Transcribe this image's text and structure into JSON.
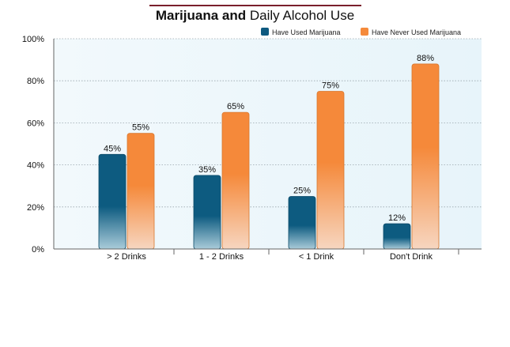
{
  "chart_data": {
    "type": "bar",
    "title_bold": "Marijuana and",
    "title_rest": "Daily Alcohol Use",
    "categories": [
      "> 2 Drinks",
      "1 - 2 Drinks",
      "< 1 Drink",
      "Don't Drink"
    ],
    "series": [
      {
        "name": "Have Used Marijuana",
        "values": [
          45,
          35,
          25,
          12
        ],
        "color": "#0f5a80"
      },
      {
        "name": "Have Never Used Marijuana",
        "values": [
          55,
          65,
          75,
          88
        ],
        "color": "#f58a3b"
      }
    ],
    "data_labels": [
      [
        "45%",
        "35%",
        "25%",
        "12%"
      ],
      [
        "55%",
        "65%",
        "75%",
        "88%"
      ]
    ],
    "yticks": [
      "0%",
      "20%",
      "40%",
      "60%",
      "80%",
      "100%"
    ],
    "ytick_values": [
      0,
      20,
      40,
      60,
      80,
      100
    ],
    "ylim": [
      0,
      100
    ],
    "legend_position": "top-right",
    "grid": true,
    "plot_background": "#eef7fb"
  }
}
